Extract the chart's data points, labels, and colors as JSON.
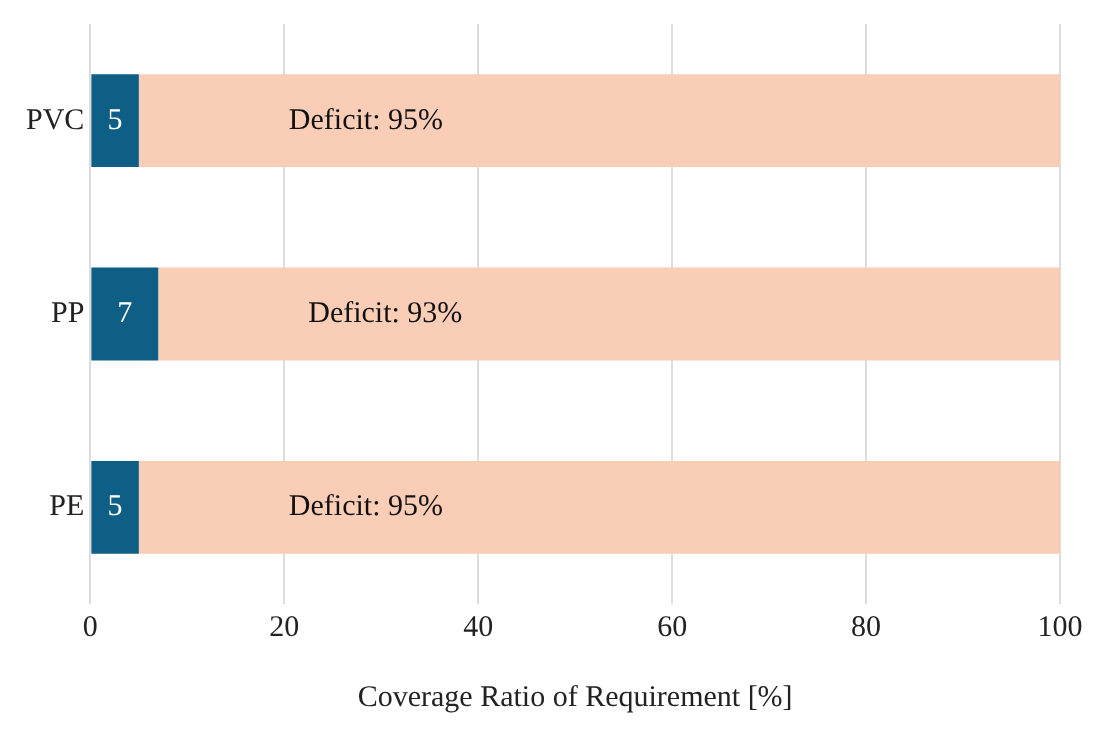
{
  "chart_data": {
    "type": "bar",
    "orientation": "horizontal",
    "stacked": true,
    "xlabel": "Coverage Ratio of Requirement [%]",
    "categories": [
      "PVC",
      "PP",
      "PE"
    ],
    "series": [
      {
        "color": "#0f5e86",
        "values": [
          5,
          7,
          5
        ],
        "value_labels": [
          "5",
          "7",
          "5"
        ]
      },
      {
        "color": "#f9cdb6",
        "values": [
          95,
          93,
          95
        ],
        "value_labels": [
          "Deficit: 95%",
          "Deficit: 93%",
          "Deficit: 95%"
        ]
      }
    ],
    "xlim": [
      0,
      100
    ],
    "xticks": [
      0,
      20,
      40,
      60,
      80,
      100
    ],
    "grid": "x",
    "legend": false
  }
}
